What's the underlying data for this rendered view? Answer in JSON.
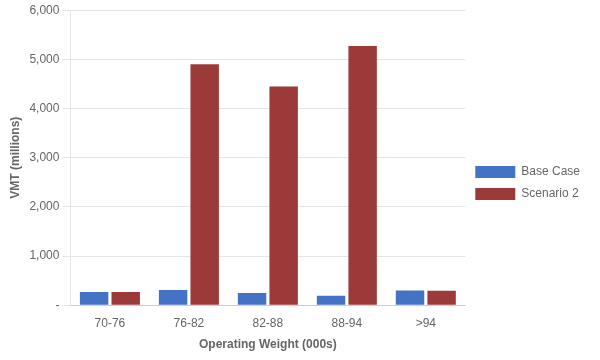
{
  "chart_data": {
    "type": "bar",
    "categories": [
      "70-76",
      "76-82",
      "82-88",
      "88-94",
      ">94"
    ],
    "series": [
      {
        "name": "Base Case",
        "color": "#4472C4",
        "values": [
          270,
          310,
          250,
          190,
          300
        ]
      },
      {
        "name": "Scenario 2",
        "color": "#9C3A3A",
        "values": [
          270,
          4900,
          4450,
          5270,
          295
        ]
      }
    ],
    "xlabel": "Operating Weight (000s)",
    "ylabel": "VMT (millions)",
    "ylim": [
      0,
      6000
    ],
    "yticks": [
      {
        "value": 0,
        "label": "-"
      },
      {
        "value": 1000,
        "label": "1,000"
      },
      {
        "value": 2000,
        "label": "2,000"
      },
      {
        "value": 3000,
        "label": "3,000"
      },
      {
        "value": 4000,
        "label": "4,000"
      },
      {
        "value": 5000,
        "label": "5,000"
      },
      {
        "value": 6000,
        "label": "6,000"
      }
    ],
    "grid": "y",
    "legend": "right"
  }
}
